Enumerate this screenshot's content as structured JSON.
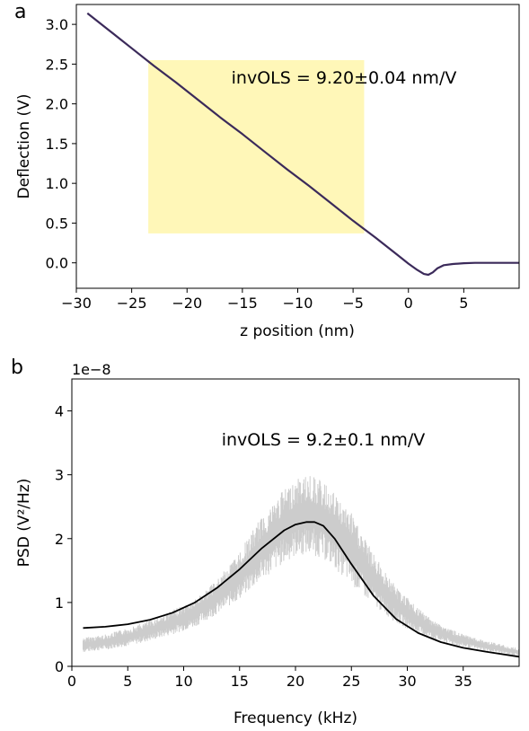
{
  "chart_data": [
    {
      "panel": "a",
      "type": "line",
      "xlabel": "z position (nm)",
      "ylabel": "Deflection (V)",
      "xlim": [
        -30,
        10
      ],
      "ylim": [
        -0.32,
        3.25
      ],
      "xticks": [
        -30,
        -25,
        -20,
        -15,
        -10,
        -5,
        0,
        5
      ],
      "xtick_labels": [
        "−30",
        "−25",
        "−20",
        "−15",
        "−10",
        "−5",
        "0",
        "5"
      ],
      "yticks": [
        0.0,
        0.5,
        1.0,
        1.5,
        2.0,
        2.5,
        3.0
      ],
      "ytick_labels": [
        "0.0",
        "0.5",
        "1.0",
        "1.5",
        "2.0",
        "2.5",
        "3.0"
      ],
      "grid": false,
      "annotation": "invOLS = 9.20±0.04 nm/V",
      "highlight_region": {
        "x": [
          -23.5,
          -4
        ],
        "y": [
          0.37,
          2.55
        ],
        "color": "#fff7b8"
      },
      "series": [
        {
          "color": "#3b2a5a",
          "x": [
            -29,
            -27,
            -25,
            -23,
            -21,
            -19,
            -17,
            -15,
            -13,
            -11,
            -9,
            -7,
            -5,
            -3,
            -1,
            0,
            0.8,
            1.4,
            1.8,
            2.2,
            2.6,
            3.2,
            4,
            5,
            6,
            7,
            8,
            9,
            10
          ],
          "y": [
            3.14,
            2.92,
            2.7,
            2.48,
            2.27,
            2.05,
            1.83,
            1.62,
            1.4,
            1.18,
            0.97,
            0.75,
            0.53,
            0.32,
            0.1,
            -0.01,
            -0.09,
            -0.14,
            -0.15,
            -0.12,
            -0.07,
            -0.03,
            -0.015,
            -0.005,
            0.0,
            0.0,
            0.0,
            0.0,
            0.0
          ]
        }
      ]
    },
    {
      "panel": "b",
      "type": "line",
      "xlabel": "Frequency (kHz)",
      "ylabel": "PSD (V²/Hz)",
      "scale_label": "1e−8",
      "xlim": [
        0,
        40
      ],
      "ylim": [
        0,
        4.5
      ],
      "xticks": [
        0,
        5,
        10,
        15,
        20,
        25,
        30,
        35
      ],
      "xtick_labels": [
        "0",
        "5",
        "10",
        "15",
        "20",
        "25",
        "30",
        "35"
      ],
      "yticks": [
        0,
        1,
        2,
        3,
        4
      ],
      "ytick_labels": [
        "0",
        "1",
        "2",
        "3",
        "4"
      ],
      "grid": false,
      "annotation": "invOLS = 9.2±0.1 nm/V",
      "series": [
        {
          "kind": "band",
          "color": "#cccccc",
          "x": [
            1,
            3,
            5,
            7,
            9,
            11,
            13,
            15,
            17,
            19,
            20,
            21,
            22,
            23,
            25,
            27,
            29,
            31,
            33,
            35,
            37,
            40
          ],
          "low": [
            0.22,
            0.26,
            0.32,
            0.4,
            0.5,
            0.62,
            0.82,
            1.05,
            1.35,
            1.62,
            1.72,
            1.75,
            1.72,
            1.62,
            1.28,
            0.95,
            0.68,
            0.5,
            0.38,
            0.3,
            0.24,
            0.16
          ],
          "high": [
            0.45,
            0.5,
            0.6,
            0.72,
            0.88,
            1.05,
            1.35,
            1.8,
            2.35,
            2.78,
            2.92,
            3.0,
            2.95,
            2.8,
            2.4,
            1.75,
            1.25,
            0.9,
            0.65,
            0.5,
            0.4,
            0.28
          ]
        },
        {
          "kind": "fit",
          "color": "#000000",
          "x": [
            1,
            3,
            5,
            7,
            9,
            11,
            13,
            15,
            17,
            19,
            20,
            21,
            21.7,
            22.5,
            23.5,
            25,
            27,
            29,
            31,
            33,
            35,
            37,
            40
          ],
          "y": [
            0.6,
            0.62,
            0.66,
            0.73,
            0.84,
            1.0,
            1.23,
            1.52,
            1.85,
            2.13,
            2.22,
            2.26,
            2.26,
            2.2,
            2.0,
            1.6,
            1.1,
            0.74,
            0.52,
            0.38,
            0.29,
            0.23,
            0.15
          ]
        }
      ]
    }
  ]
}
